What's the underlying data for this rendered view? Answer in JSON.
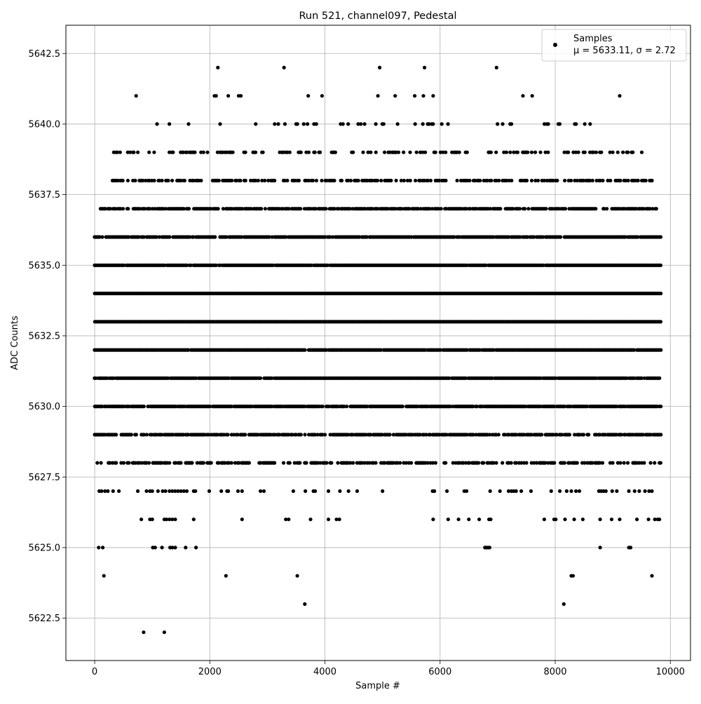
{
  "chart_data": {
    "type": "scatter",
    "title": "Run 521, channel097, Pedestal",
    "xlabel": "Sample #",
    "ylabel": "ADC Counts",
    "xlim": [
      -500,
      10350
    ],
    "ylim": [
      5621,
      5643.5
    ],
    "x_ticks": [
      0,
      2000,
      4000,
      6000,
      8000,
      10000
    ],
    "x_tick_labels": [
      "0",
      "2000",
      "4000",
      "6000",
      "8000",
      "10000"
    ],
    "y_ticks": [
      5622.5,
      5625.0,
      5627.5,
      5630.0,
      5632.5,
      5635.0,
      5637.5,
      5640.0,
      5642.5
    ],
    "y_tick_labels": [
      "5622.5",
      "5625.0",
      "5627.5",
      "5630.0",
      "5632.5",
      "5635.0",
      "5637.5",
      "5640.0",
      "5642.5"
    ],
    "grid": true,
    "legend": {
      "position": "top-right",
      "entries": [
        {
          "label": "Samples",
          "sublabel": "μ = 5633.11, σ = 2.72",
          "marker": "dot",
          "color": "#000000"
        }
      ]
    },
    "marker_color": "#000000",
    "n_samples": 9840,
    "series": [
      {
        "name": "Samples",
        "level_values": [
          5622,
          5623,
          5624,
          5625,
          5626,
          5627,
          5628,
          5629,
          5630,
          5631,
          5632,
          5633,
          5634,
          5635,
          5636,
          5637,
          5638,
          5639,
          5640,
          5641,
          5642
        ],
        "level_x_points": {
          "5622": [
            850,
            1210
          ],
          "5623": [
            3650,
            8150
          ],
          "5624": [
            160,
            2280,
            3520,
            8280,
            8310,
            9680
          ],
          "5625": [
            70,
            140,
            1010,
            1050,
            1170,
            1310,
            1350,
            1400,
            1580,
            1760,
            6780,
            6800,
            6830,
            6860,
            8780,
            9280,
            9310
          ],
          "5626": [
            810,
            960,
            1000,
            1210,
            1250,
            1300,
            1350,
            1400,
            1720,
            2560,
            3320,
            3370,
            3750,
            4060,
            4200,
            4250,
            5880,
            6140,
            6320,
            6500,
            6680,
            6850,
            6880,
            7810,
            7980,
            8010,
            8170,
            8330,
            8480,
            8780,
            8980,
            9120,
            9420,
            9620,
            9730,
            9780,
            9810
          ],
          "5627": [
            80,
            120,
            180,
            230,
            320,
            420,
            750,
            900,
            960,
            1000,
            1100,
            1180,
            1230,
            1300,
            1350,
            1400,
            1450,
            1500,
            1550,
            1600,
            1720,
            1750,
            1990,
            2200,
            2300,
            2320,
            2490,
            2560,
            2880,
            2940,
            3450,
            3660,
            3800,
            3830,
            4060,
            4260,
            4410,
            4560,
            5000,
            5870,
            5900,
            6120,
            6420,
            6460,
            6870,
            7040,
            7190,
            7240,
            7280,
            7320,
            7410,
            7580,
            7930,
            8080,
            8200,
            8280,
            8360,
            8420,
            8760,
            8800,
            8840,
            8880,
            8990,
            9070,
            9280,
            9380,
            9460,
            9560,
            9630,
            9680
          ]
        },
        "dense_band": {
          "5628": [
            0,
            9840
          ],
          "5629": [
            0,
            9840
          ],
          "5630": [
            0,
            9840
          ],
          "5631": [
            0,
            9840
          ],
          "5632": [
            0,
            9840
          ],
          "5633": [
            0,
            9840
          ],
          "5634": [
            0,
            9840
          ],
          "5635": [
            0,
            9840
          ],
          "5636": [
            0,
            9840
          ],
          "5637": [
            100,
            9840
          ],
          "5638": [
            290,
            9720
          ],
          "5639": [
            330,
            9620
          ],
          "5640": [
            530,
            8900
          ]
        },
        "upper_outliers": {
          "5641": [
            720,
            2080,
            2110,
            2320,
            2500,
            2540,
            3710,
            3950,
            4920,
            5220,
            5560,
            5710,
            5880,
            7440,
            7600,
            9120
          ],
          "5642": [
            2140,
            3290,
            4950,
            5730,
            6980
          ]
        }
      }
    ]
  }
}
